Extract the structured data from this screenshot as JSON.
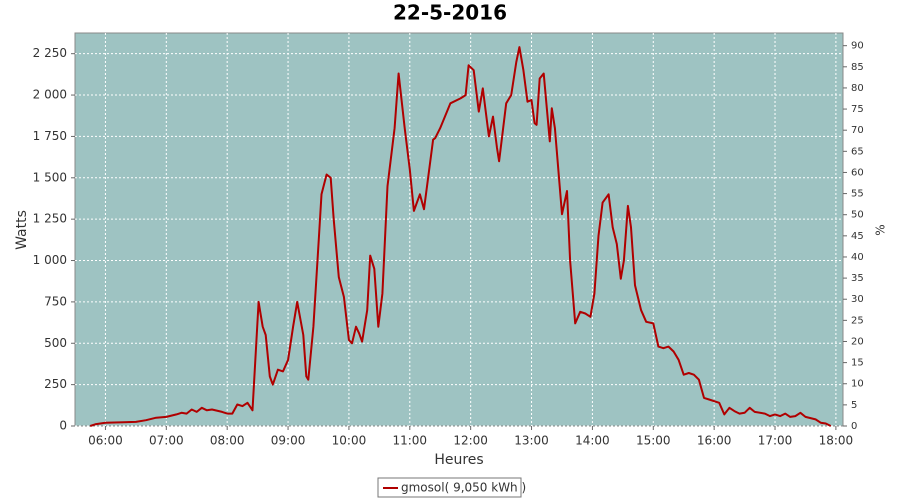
{
  "chart_data": {
    "type": "line",
    "title": "22-5-2016",
    "x_label": "Heures",
    "y_label": "Watts",
    "y2_label": "%",
    "x": [
      "05:45",
      "05:50",
      "06:00",
      "06:30",
      "06:40",
      "06:50",
      "07:00",
      "07:10",
      "07:15",
      "07:20",
      "07:25",
      "07:30",
      "07:35",
      "07:40",
      "07:45",
      "07:55",
      "08:00",
      "08:05",
      "08:10",
      "08:15",
      "08:20",
      "08:25",
      "08:31",
      "08:35",
      "08:38",
      "08:42",
      "08:45",
      "08:50",
      "08:55",
      "09:00",
      "09:05",
      "09:09",
      "09:15",
      "09:18",
      "09:20",
      "09:25",
      "09:30",
      "09:33",
      "09:38",
      "09:42",
      "09:45",
      "09:50",
      "09:55",
      "10:00",
      "10:03",
      "10:07",
      "10:10",
      "10:13",
      "10:18",
      "10:21",
      "10:25",
      "10:29",
      "10:33",
      "10:38",
      "10:45",
      "10:49",
      "10:55",
      "11:00",
      "11:04",
      "11:10",
      "11:14",
      "11:23",
      "11:25",
      "11:30",
      "11:40",
      "11:50",
      "11:55",
      "11:58",
      "12:03",
      "12:08",
      "12:12",
      "12:18",
      "12:22",
      "12:26",
      "12:28",
      "12:35",
      "12:40",
      "12:45",
      "12:48",
      "12:52",
      "12:56",
      "13:00",
      "13:03",
      "13:05",
      "13:08",
      "13:12",
      "13:18",
      "13:20",
      "13:23",
      "13:30",
      "13:35",
      "13:38",
      "13:43",
      "13:48",
      "13:53",
      "13:58",
      "14:02",
      "14:06",
      "14:10",
      "14:16",
      "14:20",
      "14:24",
      "14:28",
      "14:31",
      "14:35",
      "14:38",
      "14:42",
      "14:48",
      "14:53",
      "15:00",
      "15:05",
      "15:10",
      "15:15",
      "15:20",
      "15:25",
      "15:30",
      "15:35",
      "15:40",
      "15:45",
      "15:50",
      "15:55",
      "16:05",
      "16:10",
      "16:15",
      "16:20",
      "16:25",
      "16:30",
      "16:35",
      "16:40",
      "16:50",
      "16:55",
      "17:00",
      "17:05",
      "17:10",
      "17:15",
      "17:20",
      "17:25",
      "17:30",
      "17:40",
      "17:45",
      "17:50",
      "17:55"
    ],
    "series": [
      {
        "name": "gmosol( 9,050 kWh )",
        "color": "#b00000",
        "values": [
          0,
          10,
          20,
          25,
          35,
          50,
          55,
          70,
          80,
          75,
          100,
          85,
          110,
          95,
          100,
          85,
          75,
          75,
          130,
          120,
          140,
          95,
          750,
          600,
          550,
          300,
          250,
          340,
          330,
          400,
          600,
          750,
          550,
          300,
          280,
          600,
          1100,
          1400,
          1520,
          1500,
          1250,
          900,
          780,
          520,
          500,
          600,
          560,
          510,
          700,
          1030,
          950,
          600,
          800,
          1450,
          1800,
          2130,
          1800,
          1550,
          1300,
          1400,
          1310,
          1730,
          1740,
          1800,
          1950,
          1980,
          2000,
          2180,
          2150,
          1900,
          2040,
          1750,
          1870,
          1680,
          1600,
          1950,
          2000,
          2200,
          2290,
          2150,
          1960,
          1970,
          1830,
          1820,
          2100,
          2130,
          1720,
          1920,
          1800,
          1280,
          1420,
          1000,
          620,
          690,
          680,
          660,
          800,
          1150,
          1350,
          1400,
          1200,
          1100,
          890,
          1000,
          1330,
          1200,
          850,
          700,
          630,
          620,
          480,
          470,
          480,
          450,
          400,
          310,
          320,
          310,
          280,
          170,
          160,
          140,
          70,
          110,
          90,
          75,
          80,
          110,
          85,
          75,
          60,
          70,
          60,
          75,
          55,
          60,
          80,
          55,
          40,
          20,
          15,
          0
        ]
      }
    ],
    "xlim": [
      "05:30",
      "18:07"
    ],
    "xticks": [
      "06:00",
      "07:00",
      "08:00",
      "09:00",
      "10:00",
      "11:00",
      "12:00",
      "13:00",
      "14:00",
      "15:00",
      "16:00",
      "17:00",
      "18:00"
    ],
    "ylim": [
      0,
      2375
    ],
    "yticks": [
      0,
      250,
      500,
      750,
      {
        "value": 1000,
        "label": "1 000"
      },
      {
        "value": 1250,
        "label": "1 250"
      },
      {
        "value": 1500,
        "label": "1 500"
      },
      {
        "value": 1750,
        "label": "1 750"
      },
      {
        "value": 2000,
        "label": "2 000"
      },
      {
        "value": 2250,
        "label": "2 250"
      }
    ],
    "y2lim": [
      0,
      93
    ],
    "y2ticks": [
      0,
      5,
      10,
      15,
      20,
      25,
      30,
      35,
      40,
      45,
      50,
      55,
      60,
      65,
      70,
      75,
      80,
      85,
      90
    ],
    "grid": true,
    "legend": "bottom"
  }
}
